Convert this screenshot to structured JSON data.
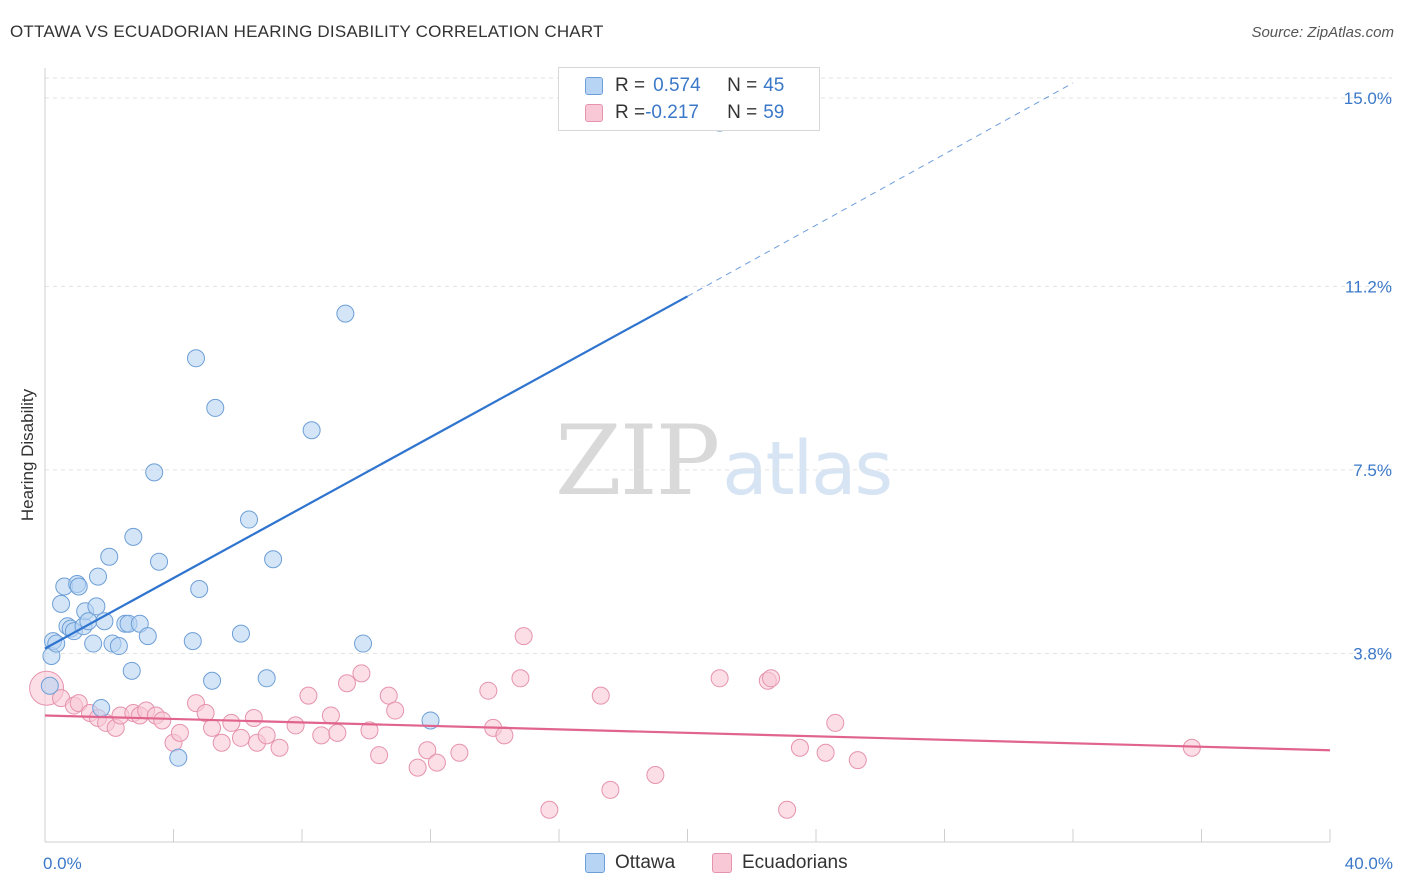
{
  "title": "OTTAWA VS ECUADORIAN HEARING DISABILITY CORRELATION CHART",
  "source": "Source: ZipAtlas.com",
  "watermark": {
    "zip": "ZIP",
    "atlas": "atlas"
  },
  "colors": {
    "ottawa_fill": "#b8d4f4",
    "ottawa_stroke": "#6d9fd6",
    "ottawa_line": "#2f74cf",
    "ecu_fill": "#f8c8d6",
    "ecu_stroke": "#e693ae",
    "ecu_line": "#e0648e",
    "tick_label": "#3b78c8"
  },
  "legend": {
    "ottawa": {
      "r_label": "R = ",
      "r_value": "0.574",
      "n_label": "N = ",
      "n_value": "45"
    },
    "ecuadorians": {
      "r_label": "R = ",
      "r_value": "-0.217",
      "n_label": "N = ",
      "n_value": "59"
    }
  },
  "chart_data": {
    "type": "scatter",
    "title": "OTTAWA VS ECUADORIAN HEARING DISABILITY CORRELATION CHART",
    "xlabel": "",
    "ylabel": "Hearing Disability",
    "xlim": [
      0,
      40
    ],
    "ylim": [
      0,
      15.4
    ],
    "x_tick_labels": [
      "0.0%",
      "40.0%"
    ],
    "y_ticks": [
      3.8,
      7.5,
      11.2,
      15.0
    ],
    "y_tick_labels": [
      "3.8%",
      "7.5%",
      "11.2%",
      "15.0%"
    ],
    "grid": true,
    "legend_position": "bottom-center",
    "series": [
      {
        "name": "Ottawa",
        "points": [
          [
            0.15,
            3.15
          ],
          [
            0.2,
            3.75
          ],
          [
            0.25,
            4.05
          ],
          [
            0.35,
            4.0
          ],
          [
            0.5,
            4.8
          ],
          [
            0.6,
            5.15
          ],
          [
            0.7,
            4.35
          ],
          [
            0.8,
            4.3
          ],
          [
            0.9,
            4.25
          ],
          [
            1.0,
            5.2
          ],
          [
            1.05,
            5.15
          ],
          [
            1.2,
            4.35
          ],
          [
            1.25,
            4.65
          ],
          [
            1.35,
            4.45
          ],
          [
            1.5,
            4.0
          ],
          [
            1.6,
            4.75
          ],
          [
            1.65,
            5.35
          ],
          [
            1.75,
            2.7
          ],
          [
            1.85,
            4.45
          ],
          [
            2.0,
            5.75
          ],
          [
            2.1,
            4.0
          ],
          [
            2.3,
            3.95
          ],
          [
            2.5,
            4.4
          ],
          [
            2.6,
            4.4
          ],
          [
            2.7,
            3.45
          ],
          [
            2.75,
            6.15
          ],
          [
            2.95,
            4.4
          ],
          [
            3.2,
            4.15
          ],
          [
            3.4,
            7.45
          ],
          [
            3.55,
            5.65
          ],
          [
            4.15,
            1.7
          ],
          [
            4.6,
            4.05
          ],
          [
            4.7,
            9.75
          ],
          [
            4.8,
            5.1
          ],
          [
            5.2,
            3.25
          ],
          [
            5.3,
            8.75
          ],
          [
            6.1,
            4.2
          ],
          [
            6.35,
            6.5
          ],
          [
            6.9,
            3.3
          ],
          [
            7.1,
            5.7
          ],
          [
            8.3,
            8.3
          ],
          [
            9.35,
            10.65
          ],
          [
            9.9,
            4.0
          ],
          [
            12.0,
            2.45
          ],
          [
            21.0,
            14.5
          ]
        ],
        "trend": {
          "x0": 0,
          "y0": 3.9,
          "x1": 20.0,
          "y1": 11.0,
          "dash_to_x": 32,
          "dash_to_y": 15.3
        }
      },
      {
        "name": "Ecuadorians",
        "points": [
          [
            0.05,
            3.1
          ],
          [
            0.5,
            2.9
          ],
          [
            0.9,
            2.75
          ],
          [
            1.05,
            2.8
          ],
          [
            1.4,
            2.6
          ],
          [
            1.65,
            2.5
          ],
          [
            1.9,
            2.4
          ],
          [
            2.2,
            2.3
          ],
          [
            2.35,
            2.55
          ],
          [
            2.75,
            2.6
          ],
          [
            2.95,
            2.55
          ],
          [
            3.15,
            2.65
          ],
          [
            3.45,
            2.55
          ],
          [
            3.65,
            2.45
          ],
          [
            4.0,
            2.0
          ],
          [
            4.2,
            2.2
          ],
          [
            4.7,
            2.8
          ],
          [
            5.0,
            2.6
          ],
          [
            5.2,
            2.3
          ],
          [
            5.5,
            2.0
          ],
          [
            5.8,
            2.4
          ],
          [
            6.1,
            2.1
          ],
          [
            6.5,
            2.5
          ],
          [
            6.6,
            2.0
          ],
          [
            6.9,
            2.15
          ],
          [
            7.3,
            1.9
          ],
          [
            7.8,
            2.35
          ],
          [
            8.2,
            2.95
          ],
          [
            8.6,
            2.15
          ],
          [
            8.9,
            2.55
          ],
          [
            9.1,
            2.2
          ],
          [
            9.4,
            3.2
          ],
          [
            9.85,
            3.4
          ],
          [
            10.1,
            2.25
          ],
          [
            10.4,
            1.75
          ],
          [
            10.7,
            2.95
          ],
          [
            10.9,
            2.65
          ],
          [
            11.6,
            1.5
          ],
          [
            11.9,
            1.85
          ],
          [
            12.2,
            1.6
          ],
          [
            12.9,
            1.8
          ],
          [
            13.8,
            3.05
          ],
          [
            13.95,
            2.3
          ],
          [
            14.3,
            2.15
          ],
          [
            14.8,
            3.3
          ],
          [
            14.9,
            4.15
          ],
          [
            15.7,
            0.65
          ],
          [
            17.3,
            2.95
          ],
          [
            17.6,
            1.05
          ],
          [
            19.0,
            1.35
          ],
          [
            21.0,
            3.3
          ],
          [
            22.5,
            3.25
          ],
          [
            22.6,
            3.3
          ],
          [
            23.1,
            0.65
          ],
          [
            23.5,
            1.9
          ],
          [
            24.3,
            1.8
          ],
          [
            24.6,
            2.4
          ],
          [
            25.3,
            1.65
          ],
          [
            35.7,
            1.9
          ]
        ],
        "trend": {
          "x0": 0,
          "y0": 2.55,
          "x1": 40.0,
          "y1": 1.85
        }
      }
    ]
  }
}
